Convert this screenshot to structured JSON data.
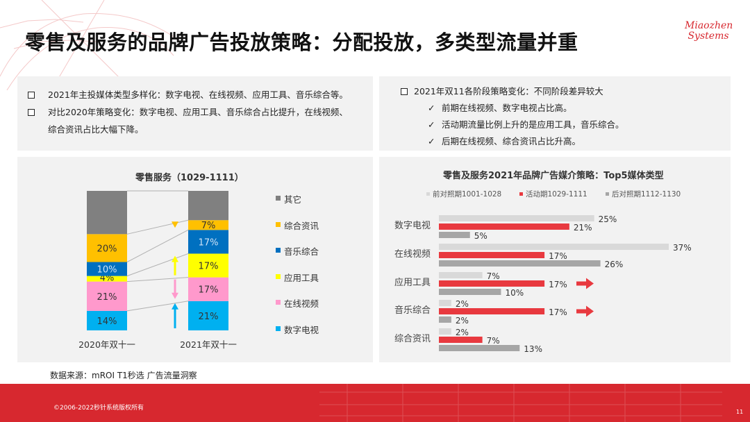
{
  "page": {
    "title": "零售及服务的品牌广告投放策略：分配投放，多类型流量并重",
    "logo": {
      "line1": "Miaozhen",
      "line2": "Systems"
    }
  },
  "left_notes": [
    "2021年主投媒体类型多样化：数字电视、在线视频、应用工具、音乐综合等。",
    "对比2020年策略变化：数字电视、应用工具、音乐综合占比提升，在线视频、",
    "综合资讯占比大幅下降。"
  ],
  "right_notes": {
    "heading": "2021年双11各阶段策略变化：不同阶段差异较大",
    "items": [
      "前期在线视频、数字电视占比高。",
      "活动期流量比例上升的是应用工具，音乐综合。",
      "后期在线视频、综合资讯占比升高。"
    ],
    "check_mark": "✓"
  },
  "chart_data": [
    {
      "type": "bar",
      "stacked": true,
      "title": "零售服务（1029-1111）",
      "categories": [
        "2020年双十一",
        "2021年双十一"
      ],
      "series": [
        {
          "name": "数字电视",
          "color": "#00b0f0",
          "values": [
            14,
            21
          ]
        },
        {
          "name": "在线视频",
          "color": "#ff99cc",
          "values": [
            21,
            17
          ]
        },
        {
          "name": "应用工具",
          "color": "#ffff00",
          "values": [
            4,
            17
          ]
        },
        {
          "name": "音乐综合",
          "color": "#0070c0",
          "values": [
            10,
            17
          ]
        },
        {
          "name": "综合资讯",
          "color": "#ffc000",
          "values": [
            20,
            7
          ]
        },
        {
          "name": "其它",
          "color": "#808080",
          "values": [
            31,
            21
          ]
        }
      ],
      "value_suffix": "%",
      "legend_order": [
        "其它",
        "综合资讯",
        "音乐综合",
        "应用工具",
        "在线视频",
        "数字电视"
      ],
      "legend_position": "right",
      "trend_arrows": [
        {
          "series": "综合资讯",
          "direction": "down",
          "color": "#ffc000"
        },
        {
          "series": "应用工具",
          "direction": "up",
          "color": "#ffff00"
        },
        {
          "series": "在线视频",
          "direction": "down",
          "color": "#ff99cc"
        },
        {
          "series": "数字电视",
          "direction": "up",
          "color": "#00b0f0"
        }
      ],
      "ylim": [
        0,
        100
      ]
    },
    {
      "type": "bar",
      "orientation": "horizontal",
      "title": "零售及服务2021年品牌广告媒介策略：Top5媒体类型",
      "categories": [
        "数字电视",
        "在线视频",
        "应用工具",
        "音乐综合",
        "综合资讯"
      ],
      "series": [
        {
          "name": "前对照期1001-1028",
          "color": "#d9d9d9",
          "values": [
            25,
            37,
            7,
            2,
            2
          ]
        },
        {
          "name": "活动期1029-1111",
          "color": "#e8393f",
          "values": [
            21,
            17,
            17,
            17,
            7
          ]
        },
        {
          "name": "后对照期1112-1130",
          "color": "#a6a6a6",
          "values": [
            5,
            26,
            10,
            2,
            13
          ]
        }
      ],
      "value_suffix": "%",
      "legend_position": "top",
      "highlight_arrows": [
        "应用工具",
        "音乐综合"
      ],
      "xlim": [
        0,
        37
      ]
    }
  ],
  "source": "数据来源：mROI T1秒选  广告流量洞察",
  "footer": {
    "copyright": "©2006-2022秒针系统版权所有",
    "page_number": "11"
  }
}
